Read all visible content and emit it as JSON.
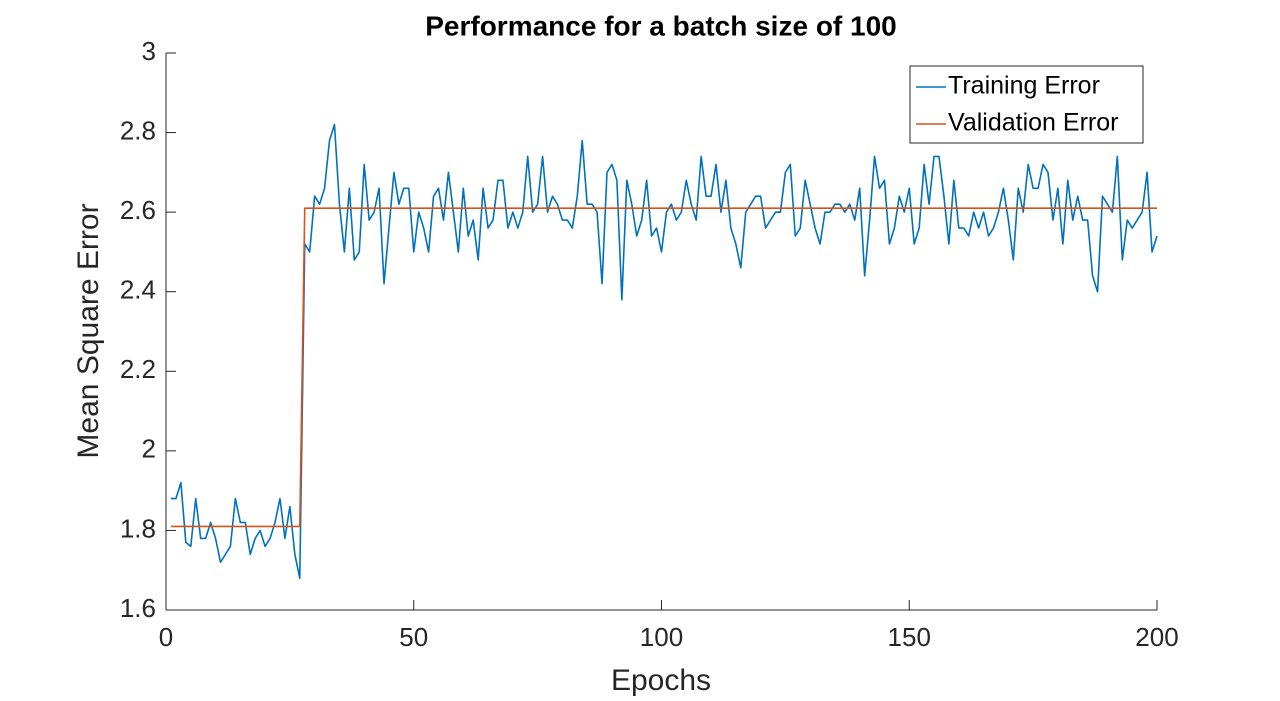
{
  "chart_data": {
    "type": "line",
    "title": "Performance for a batch size of 100",
    "xlabel": "Epochs",
    "ylabel": "Mean Square Error",
    "x": [
      1,
      2,
      3,
      4,
      5,
      6,
      7,
      8,
      9,
      10,
      11,
      12,
      13,
      14,
      15,
      16,
      17,
      18,
      19,
      20,
      21,
      22,
      23,
      24,
      25,
      26,
      27,
      28,
      29,
      30,
      31,
      32,
      33,
      34,
      35,
      36,
      37,
      38,
      39,
      40,
      41,
      42,
      43,
      44,
      45,
      46,
      47,
      48,
      49,
      50,
      51,
      52,
      53,
      54,
      55,
      56,
      57,
      58,
      59,
      60,
      61,
      62,
      63,
      64,
      65,
      66,
      67,
      68,
      69,
      70,
      71,
      72,
      73,
      74,
      75,
      76,
      77,
      78,
      79,
      80,
      81,
      82,
      83,
      84,
      85,
      86,
      87,
      88,
      89,
      90,
      91,
      92,
      93,
      94,
      95,
      96,
      97,
      98,
      99,
      100,
      101,
      102,
      103,
      104,
      105,
      106,
      107,
      108,
      109,
      110,
      111,
      112,
      113,
      114,
      115,
      116,
      117,
      118,
      119,
      120,
      121,
      122,
      123,
      124,
      125,
      126,
      127,
      128,
      129,
      130,
      131,
      132,
      133,
      134,
      135,
      136,
      137,
      138,
      139,
      140,
      141,
      142,
      143,
      144,
      145,
      146,
      147,
      148,
      149,
      150,
      151,
      152,
      153,
      154,
      155,
      156,
      157,
      158,
      159,
      160,
      161,
      162,
      163,
      164,
      165,
      166,
      167,
      168,
      169,
      170,
      171,
      172,
      173,
      174,
      175,
      176,
      177,
      178,
      179,
      180,
      181,
      182,
      183,
      184,
      185,
      186,
      187,
      188,
      189,
      190,
      191,
      192,
      193,
      194,
      195,
      196,
      197,
      198,
      199,
      200
    ],
    "series": [
      {
        "name": "Training Error",
        "color": "#0072bd",
        "values": [
          1.88,
          1.88,
          1.92,
          1.77,
          1.76,
          1.88,
          1.78,
          1.78,
          1.82,
          1.78,
          1.72,
          1.74,
          1.76,
          1.88,
          1.82,
          1.82,
          1.74,
          1.78,
          1.8,
          1.76,
          1.78,
          1.82,
          1.88,
          1.78,
          1.86,
          1.74,
          1.68,
          2.52,
          2.5,
          2.64,
          2.62,
          2.66,
          2.78,
          2.82,
          2.62,
          2.5,
          2.66,
          2.48,
          2.5,
          2.72,
          2.58,
          2.6,
          2.66,
          2.42,
          2.56,
          2.7,
          2.62,
          2.66,
          2.66,
          2.5,
          2.6,
          2.56,
          2.5,
          2.64,
          2.66,
          2.58,
          2.7,
          2.6,
          2.5,
          2.66,
          2.54,
          2.58,
          2.48,
          2.66,
          2.56,
          2.58,
          2.68,
          2.68,
          2.56,
          2.6,
          2.56,
          2.6,
          2.74,
          2.6,
          2.62,
          2.74,
          2.6,
          2.64,
          2.62,
          2.58,
          2.58,
          2.56,
          2.64,
          2.78,
          2.62,
          2.62,
          2.6,
          2.42,
          2.7,
          2.72,
          2.68,
          2.38,
          2.68,
          2.62,
          2.54,
          2.58,
          2.68,
          2.54,
          2.56,
          2.5,
          2.6,
          2.62,
          2.58,
          2.6,
          2.68,
          2.62,
          2.58,
          2.74,
          2.64,
          2.64,
          2.72,
          2.6,
          2.68,
          2.56,
          2.52,
          2.46,
          2.6,
          2.62,
          2.64,
          2.64,
          2.56,
          2.58,
          2.6,
          2.6,
          2.7,
          2.72,
          2.54,
          2.56,
          2.68,
          2.62,
          2.56,
          2.52,
          2.6,
          2.6,
          2.62,
          2.62,
          2.6,
          2.62,
          2.58,
          2.66,
          2.44,
          2.58,
          2.74,
          2.66,
          2.68,
          2.52,
          2.56,
          2.64,
          2.6,
          2.66,
          2.52,
          2.56,
          2.72,
          2.62,
          2.74,
          2.74,
          2.64,
          2.52,
          2.68,
          2.56,
          2.56,
          2.54,
          2.6,
          2.56,
          2.6,
          2.54,
          2.56,
          2.6,
          2.66,
          2.58,
          2.48,
          2.66,
          2.6,
          2.72,
          2.66,
          2.66,
          2.72,
          2.7,
          2.58,
          2.66,
          2.52,
          2.68,
          2.58,
          2.64,
          2.58,
          2.58,
          2.44,
          2.4,
          2.64,
          2.62,
          2.6,
          2.74,
          2.48,
          2.58,
          2.56,
          2.58,
          2.6,
          2.7,
          2.5,
          2.54
        ]
      },
      {
        "name": "Validation Error",
        "color": "#d95319",
        "values": [
          1.81,
          1.81,
          1.81,
          1.81,
          1.81,
          1.81,
          1.81,
          1.81,
          1.81,
          1.81,
          1.81,
          1.81,
          1.81,
          1.81,
          1.81,
          1.81,
          1.81,
          1.81,
          1.81,
          1.81,
          1.81,
          1.81,
          1.81,
          1.81,
          1.81,
          1.81,
          1.81,
          2.61,
          2.61,
          2.61,
          2.61,
          2.61,
          2.61,
          2.61,
          2.61,
          2.61,
          2.61,
          2.61,
          2.61,
          2.61,
          2.61,
          2.61,
          2.61,
          2.61,
          2.61,
          2.61,
          2.61,
          2.61,
          2.61,
          2.61,
          2.61,
          2.61,
          2.61,
          2.61,
          2.61,
          2.61,
          2.61,
          2.61,
          2.61,
          2.61,
          2.61,
          2.61,
          2.61,
          2.61,
          2.61,
          2.61,
          2.61,
          2.61,
          2.61,
          2.61,
          2.61,
          2.61,
          2.61,
          2.61,
          2.61,
          2.61,
          2.61,
          2.61,
          2.61,
          2.61,
          2.61,
          2.61,
          2.61,
          2.61,
          2.61,
          2.61,
          2.61,
          2.61,
          2.61,
          2.61,
          2.61,
          2.61,
          2.61,
          2.61,
          2.61,
          2.61,
          2.61,
          2.61,
          2.61,
          2.61,
          2.61,
          2.61,
          2.61,
          2.61,
          2.61,
          2.61,
          2.61,
          2.61,
          2.61,
          2.61,
          2.61,
          2.61,
          2.61,
          2.61,
          2.61,
          2.61,
          2.61,
          2.61,
          2.61,
          2.61,
          2.61,
          2.61,
          2.61,
          2.61,
          2.61,
          2.61,
          2.61,
          2.61,
          2.61,
          2.61,
          2.61,
          2.61,
          2.61,
          2.61,
          2.61,
          2.61,
          2.61,
          2.61,
          2.61,
          2.61,
          2.61,
          2.61,
          2.61,
          2.61,
          2.61,
          2.61,
          2.61,
          2.61,
          2.61,
          2.61,
          2.61,
          2.61,
          2.61,
          2.61,
          2.61,
          2.61,
          2.61,
          2.61,
          2.61,
          2.61,
          2.61,
          2.61,
          2.61,
          2.61,
          2.61,
          2.61,
          2.61,
          2.61,
          2.61,
          2.61,
          2.61,
          2.61,
          2.61,
          2.61,
          2.61,
          2.61,
          2.61,
          2.61,
          2.61,
          2.61,
          2.61,
          2.61,
          2.61,
          2.61,
          2.61,
          2.61,
          2.61,
          2.61,
          2.61,
          2.61,
          2.61,
          2.61,
          2.61,
          2.61,
          2.61,
          2.61,
          2.61,
          2.61,
          2.61,
          2.61
        ]
      }
    ],
    "xlim": [
      0,
      200
    ],
    "xticks": [
      0,
      50,
      100,
      150,
      200
    ],
    "ylim": [
      1.6,
      3
    ],
    "yticks": [
      1.6,
      1.8,
      2,
      2.2,
      2.4,
      2.6,
      2.8,
      3
    ],
    "grid": false,
    "legend": "northeast"
  }
}
